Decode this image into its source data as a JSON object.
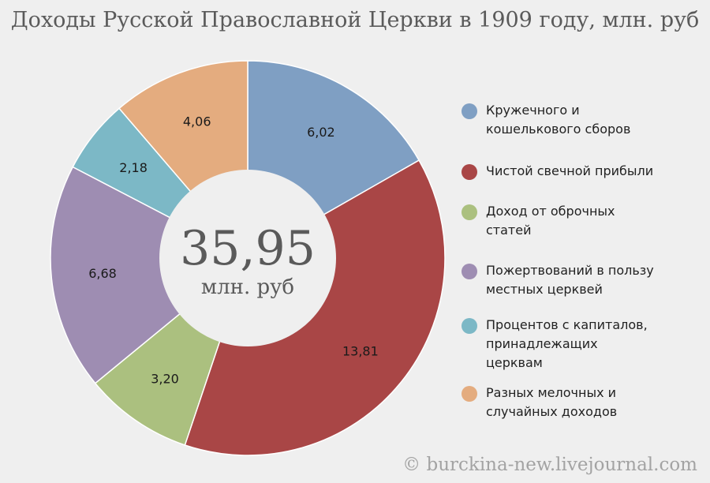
{
  "title": "Доходы Русской Православной Церкви в 1909 году, млн. руб",
  "center": {
    "total": "35,95",
    "unit": "млн. руб"
  },
  "credit": "© burckina-new.livejournal.com",
  "chart_data": {
    "type": "pie",
    "title": "Доходы Русской Православной Церкви в 1909 году, млн. руб",
    "total": 35.95,
    "legend_position": "right",
    "series": [
      {
        "name": "Кружечного и кошелькового сборов",
        "value": 6.02,
        "label": "6,02",
        "color": "#7f9fc3"
      },
      {
        "name": "Чистой свечной прибыли",
        "value": 13.81,
        "label": "13,81",
        "color": "#a94646"
      },
      {
        "name": "Доход от оброчных статей",
        "value": 3.2,
        "label": "3,20",
        "color": "#abc07f"
      },
      {
        "name": "Пожертвований в пользу местных церквей",
        "value": 6.68,
        "label": "6,68",
        "color": "#9e8db2"
      },
      {
        "name": "Процентов с капиталов, принадлежащих церквам",
        "value": 2.18,
        "label": "2,18",
        "color": "#7cb8c6"
      },
      {
        "name": "Разных мелочных и случайных доходов",
        "value": 4.06,
        "label": "4,06",
        "color": "#e4ac7f"
      }
    ]
  },
  "legend": {
    "items": [
      {
        "line1": "Кружечного и",
        "line2": "кошелькового сборов",
        "line3": ""
      },
      {
        "line1": "Чистой свечной прибыли",
        "line2": "",
        "line3": ""
      },
      {
        "line1": "Доход от оброчных",
        "line2": "статей",
        "line3": ""
      },
      {
        "line1": "Пожертвований в пользу",
        "line2": "местных церквей",
        "line3": ""
      },
      {
        "line1": "Процентов с капиталов,",
        "line2": "принадлежащих",
        "line3": "церквам"
      },
      {
        "line1": "Разных мелочных и",
        "line2": "случайных доходов",
        "line3": ""
      }
    ]
  }
}
